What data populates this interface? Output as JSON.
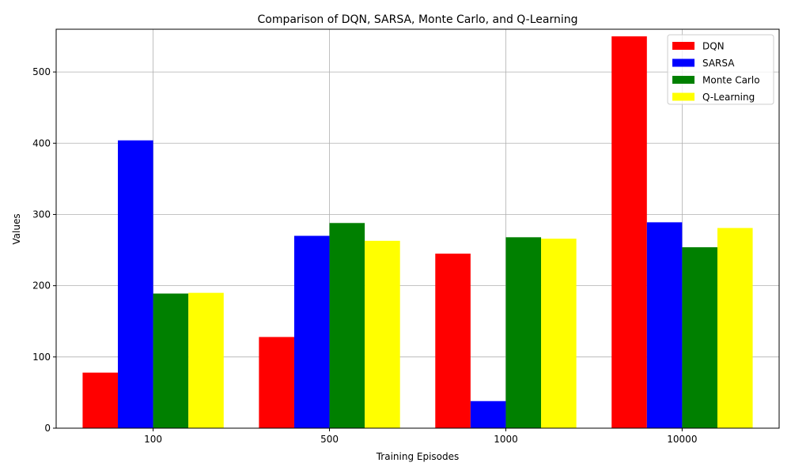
{
  "chart_data": {
    "type": "bar",
    "title": "Comparison of DQN, SARSA, Monte Carlo, and Q-Learning",
    "xlabel": "Training Episodes",
    "ylabel": "Values",
    "categories": [
      "100",
      "500",
      "1000",
      "10000"
    ],
    "series": [
      {
        "name": "DQN",
        "color": "#ff0000",
        "values": [
          78,
          128,
          245,
          550
        ]
      },
      {
        "name": "SARSA",
        "color": "#0000ff",
        "values": [
          404,
          270,
          38,
          289
        ]
      },
      {
        "name": "Monte Carlo",
        "color": "#008000",
        "values": [
          189,
          288,
          268,
          254
        ]
      },
      {
        "name": "Q-Learning",
        "color": "#ffff00",
        "values": [
          190,
          263,
          266,
          281
        ]
      }
    ],
    "ylim": [
      0,
      560
    ],
    "yticks": [
      "0",
      "100",
      "200",
      "300",
      "400",
      "500"
    ],
    "grid": true,
    "legend_position": "top-right"
  }
}
